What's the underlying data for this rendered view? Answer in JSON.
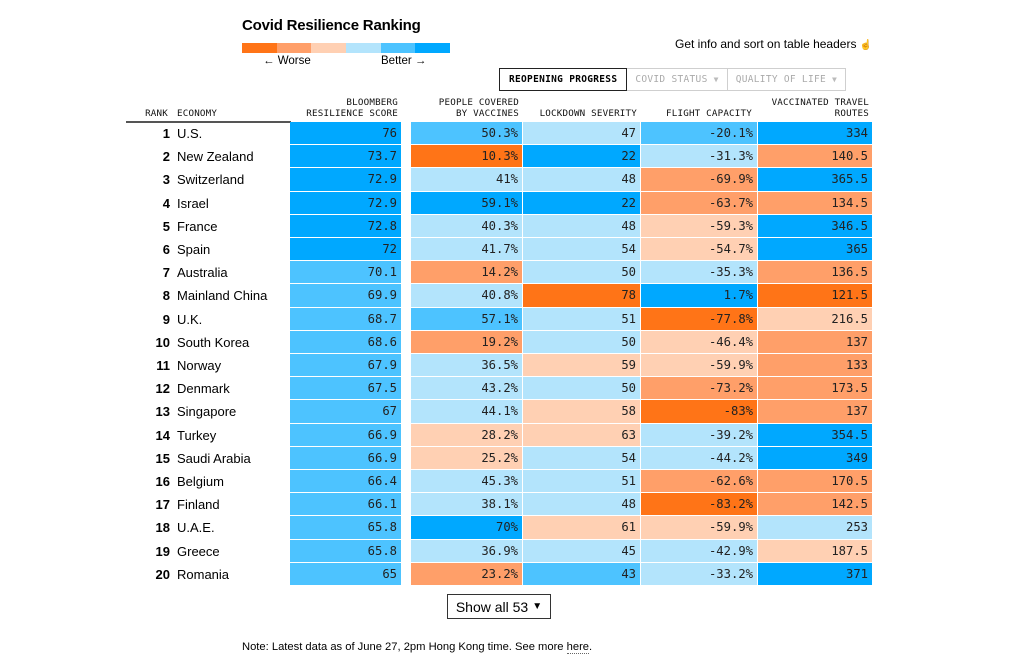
{
  "title": "Covid Resilience Ranking",
  "legend": {
    "worse_label": "← Worse",
    "better_label": "Better →",
    "scale_colors": [
      "#ff7417",
      "#ff9f69",
      "#ffd0b3",
      "#b3e4fc",
      "#4dc3ff",
      "#00a8ff"
    ]
  },
  "info_text": "Get info and sort on table headers",
  "info_icon": "hand-pointer-icon",
  "tabs": [
    {
      "label": "REOPENING PROGRESS",
      "active": true
    },
    {
      "label": "COVID STATUS",
      "active": false,
      "icon": "▼"
    },
    {
      "label": "QUALITY OF LIFE",
      "active": false,
      "icon": "▼"
    }
  ],
  "columns": {
    "rank": "RANK",
    "economy": "ECONOMY",
    "score": [
      "BLOOMBERG",
      "RESILIENCE SCORE"
    ],
    "vaccines": [
      "PEOPLE COVERED",
      "BY VACCINES"
    ],
    "lockdown": [
      "",
      "LOCKDOWN SEVERITY"
    ],
    "flight": [
      "",
      "FLIGHT CAPACITY"
    ],
    "routes": [
      "VACCINATED TRAVEL",
      "ROUTES"
    ]
  },
  "colors": {
    "o1": "#ff7417",
    "o2": "#ff9f69",
    "o3": "#ffd0b3",
    "b1": "#b3e4fc",
    "b2": "#4dc3ff",
    "b3": "#00a8ff"
  },
  "rows": [
    {
      "rank": "1",
      "economy": "U.S.",
      "score": "76",
      "score_c": "b3",
      "vac": "50.3%",
      "vac_c": "b2",
      "lock": "47",
      "lock_c": "b1",
      "flight": "-20.1%",
      "flight_c": "b2",
      "routes": "334",
      "routes_c": "b3"
    },
    {
      "rank": "2",
      "economy": "New Zealand",
      "score": "73.7",
      "score_c": "b3",
      "vac": "10.3%",
      "vac_c": "o1",
      "lock": "22",
      "lock_c": "b3",
      "flight": "-31.3%",
      "flight_c": "b1",
      "routes": "140.5",
      "routes_c": "o2"
    },
    {
      "rank": "3",
      "economy": "Switzerland",
      "score": "72.9",
      "score_c": "b3",
      "vac": "41%",
      "vac_c": "b1",
      "lock": "48",
      "lock_c": "b1",
      "flight": "-69.9%",
      "flight_c": "o2",
      "routes": "365.5",
      "routes_c": "b3"
    },
    {
      "rank": "4",
      "economy": "Israel",
      "score": "72.9",
      "score_c": "b3",
      "vac": "59.1%",
      "vac_c": "b3",
      "lock": "22",
      "lock_c": "b3",
      "flight": "-63.7%",
      "flight_c": "o2",
      "routes": "134.5",
      "routes_c": "o2"
    },
    {
      "rank": "5",
      "economy": "France",
      "score": "72.8",
      "score_c": "b3",
      "vac": "40.3%",
      "vac_c": "b1",
      "lock": "48",
      "lock_c": "b1",
      "flight": "-59.3%",
      "flight_c": "o3",
      "routes": "346.5",
      "routes_c": "b3"
    },
    {
      "rank": "6",
      "economy": "Spain",
      "score": "72",
      "score_c": "b3",
      "vac": "41.7%",
      "vac_c": "b1",
      "lock": "54",
      "lock_c": "b1",
      "flight": "-54.7%",
      "flight_c": "o3",
      "routes": "365",
      "routes_c": "b3"
    },
    {
      "rank": "7",
      "economy": "Australia",
      "score": "70.1",
      "score_c": "b2",
      "vac": "14.2%",
      "vac_c": "o2",
      "lock": "50",
      "lock_c": "b1",
      "flight": "-35.3%",
      "flight_c": "b1",
      "routes": "136.5",
      "routes_c": "o2"
    },
    {
      "rank": "8",
      "economy": "Mainland China",
      "score": "69.9",
      "score_c": "b2",
      "vac": "40.8%",
      "vac_c": "b1",
      "lock": "78",
      "lock_c": "o1",
      "flight": "1.7%",
      "flight_c": "b3",
      "routes": "121.5",
      "routes_c": "o1"
    },
    {
      "rank": "9",
      "economy": "U.K.",
      "score": "68.7",
      "score_c": "b2",
      "vac": "57.1%",
      "vac_c": "b2",
      "lock": "51",
      "lock_c": "b1",
      "flight": "-77.8%",
      "flight_c": "o1",
      "routes": "216.5",
      "routes_c": "o3"
    },
    {
      "rank": "10",
      "economy": "South Korea",
      "score": "68.6",
      "score_c": "b2",
      "vac": "19.2%",
      "vac_c": "o2",
      "lock": "50",
      "lock_c": "b1",
      "flight": "-46.4%",
      "flight_c": "o3",
      "routes": "137",
      "routes_c": "o2"
    },
    {
      "rank": "11",
      "economy": "Norway",
      "score": "67.9",
      "score_c": "b2",
      "vac": "36.5%",
      "vac_c": "b1",
      "lock": "59",
      "lock_c": "o3",
      "flight": "-59.9%",
      "flight_c": "o3",
      "routes": "133",
      "routes_c": "o2"
    },
    {
      "rank": "12",
      "economy": "Denmark",
      "score": "67.5",
      "score_c": "b2",
      "vac": "43.2%",
      "vac_c": "b1",
      "lock": "50",
      "lock_c": "b1",
      "flight": "-73.2%",
      "flight_c": "o2",
      "routes": "173.5",
      "routes_c": "o2"
    },
    {
      "rank": "13",
      "economy": "Singapore",
      "score": "67",
      "score_c": "b2",
      "vac": "44.1%",
      "vac_c": "b1",
      "lock": "58",
      "lock_c": "o3",
      "flight": "-83%",
      "flight_c": "o1",
      "routes": "137",
      "routes_c": "o2"
    },
    {
      "rank": "14",
      "economy": "Turkey",
      "score": "66.9",
      "score_c": "b2",
      "vac": "28.2%",
      "vac_c": "o3",
      "lock": "63",
      "lock_c": "o3",
      "flight": "-39.2%",
      "flight_c": "b1",
      "routes": "354.5",
      "routes_c": "b3"
    },
    {
      "rank": "15",
      "economy": "Saudi Arabia",
      "score": "66.9",
      "score_c": "b2",
      "vac": "25.2%",
      "vac_c": "o3",
      "lock": "54",
      "lock_c": "b1",
      "flight": "-44.2%",
      "flight_c": "b1",
      "routes": "349",
      "routes_c": "b3"
    },
    {
      "rank": "16",
      "economy": "Belgium",
      "score": "66.4",
      "score_c": "b2",
      "vac": "45.3%",
      "vac_c": "b1",
      "lock": "51",
      "lock_c": "b1",
      "flight": "-62.6%",
      "flight_c": "o2",
      "routes": "170.5",
      "routes_c": "o2"
    },
    {
      "rank": "17",
      "economy": "Finland",
      "score": "66.1",
      "score_c": "b2",
      "vac": "38.1%",
      "vac_c": "b1",
      "lock": "48",
      "lock_c": "b1",
      "flight": "-83.2%",
      "flight_c": "o1",
      "routes": "142.5",
      "routes_c": "o2"
    },
    {
      "rank": "18",
      "economy": "U.A.E.",
      "score": "65.8",
      "score_c": "b2",
      "vac": "70%",
      "vac_c": "b3",
      "lock": "61",
      "lock_c": "o3",
      "flight": "-59.9%",
      "flight_c": "o3",
      "routes": "253",
      "routes_c": "b1"
    },
    {
      "rank": "19",
      "economy": "Greece",
      "score": "65.8",
      "score_c": "b2",
      "vac": "36.9%",
      "vac_c": "b1",
      "lock": "45",
      "lock_c": "b1",
      "flight": "-42.9%",
      "flight_c": "b1",
      "routes": "187.5",
      "routes_c": "o3"
    },
    {
      "rank": "20",
      "economy": "Romania",
      "score": "65",
      "score_c": "b2",
      "vac": "23.2%",
      "vac_c": "o2",
      "lock": "43",
      "lock_c": "b2",
      "flight": "-33.2%",
      "flight_c": "b1",
      "routes": "371",
      "routes_c": "b3"
    }
  ],
  "show_all": {
    "label": "Show all 53",
    "icon": "▼"
  },
  "note": {
    "text": "Note: Latest data as of June 27, 2pm Hong Kong time. See more ",
    "link": "here",
    "end": "."
  }
}
